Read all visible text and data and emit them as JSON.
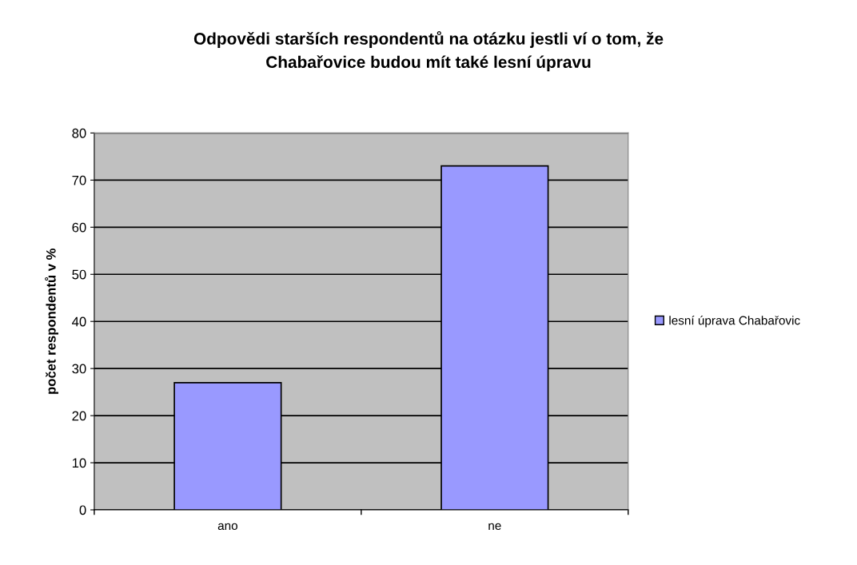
{
  "chart_data": {
    "type": "bar",
    "title": "Odpovědi starších respondentů na otázku jestli ví o tom, že\nChabařovice budou mít také lesní úpravu",
    "ylabel": "počet respondentů v %",
    "categories": [
      "ano",
      "ne"
    ],
    "series": [
      {
        "name": "lesní úprava Chabařovic",
        "color": "#9999ff",
        "values": [
          27,
          73
        ]
      }
    ],
    "ylim": [
      0,
      80
    ],
    "yticks": [
      0,
      10,
      20,
      30,
      40,
      50,
      60,
      70,
      80
    ],
    "grid": "y",
    "legend": "right"
  }
}
